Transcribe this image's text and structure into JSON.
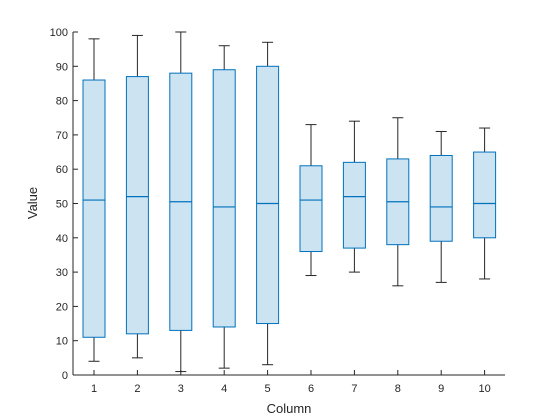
{
  "chart_data": {
    "type": "boxplot",
    "title": "",
    "xlabel": "Column",
    "ylabel": "Value",
    "ylim": [
      0,
      100
    ],
    "yticks": [
      0,
      10,
      20,
      30,
      40,
      50,
      60,
      70,
      80,
      90,
      100
    ],
    "categories": [
      "1",
      "2",
      "3",
      "4",
      "5",
      "6",
      "7",
      "8",
      "9",
      "10"
    ],
    "boxes": [
      {
        "label": "1",
        "whisker_low": 4,
        "q1": 11,
        "median": 51,
        "q3": 86,
        "whisker_high": 98
      },
      {
        "label": "2",
        "whisker_low": 5,
        "q1": 12,
        "median": 52,
        "q3": 87,
        "whisker_high": 99
      },
      {
        "label": "3",
        "whisker_low": 1,
        "q1": 13,
        "median": 50.5,
        "q3": 88,
        "whisker_high": 100
      },
      {
        "label": "4",
        "whisker_low": 2,
        "q1": 14,
        "median": 49,
        "q3": 89,
        "whisker_high": 96
      },
      {
        "label": "5",
        "whisker_low": 3,
        "q1": 15,
        "median": 50,
        "q3": 90,
        "whisker_high": 97
      },
      {
        "label": "6",
        "whisker_low": 29,
        "q1": 36,
        "median": 51,
        "q3": 61,
        "whisker_high": 73
      },
      {
        "label": "7",
        "whisker_low": 30,
        "q1": 37,
        "median": 52,
        "q3": 62,
        "whisker_high": 74
      },
      {
        "label": "8",
        "whisker_low": 26,
        "q1": 38,
        "median": 50.5,
        "q3": 63,
        "whisker_high": 75
      },
      {
        "label": "9",
        "whisker_low": 27,
        "q1": 39,
        "median": 49,
        "q3": 64,
        "whisker_high": 71
      },
      {
        "label": "10",
        "whisker_low": 28,
        "q1": 40,
        "median": 50,
        "q3": 65,
        "whisker_high": 72
      }
    ],
    "colors": {
      "box_edge": "#0072bd",
      "box_fill": "#cce3f2",
      "whisker": "#262626",
      "axis": "#262626"
    }
  }
}
